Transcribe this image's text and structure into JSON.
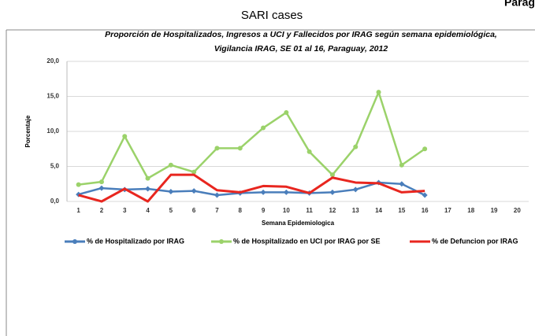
{
  "corner_text": "Parag",
  "chart_data": {
    "type": "line",
    "title": "SARI cases",
    "subtitle": [
      "Proporción de Hospitalizados, Ingresos a UCI y Fallecidos por IRAG según semana epidemiológica,",
      "Vigilancia IRAG, SE 01 al 16, Paraguay, 2012"
    ],
    "x_label": "Semana Epidemiologica",
    "y_label": "Porcentaje",
    "categories": [
      "1",
      "2",
      "3",
      "4",
      "5",
      "6",
      "7",
      "8",
      "9",
      "10",
      "11",
      "12",
      "13",
      "14",
      "15",
      "16",
      "17",
      "18",
      "19",
      "20"
    ],
    "series": [
      {
        "name": "% de Hospitalizado por IRAG",
        "color": "#4a7ebb",
        "marker": "diamond",
        "values": [
          1.0,
          1.9,
          1.7,
          1.8,
          1.4,
          1.5,
          0.9,
          1.2,
          1.3,
          1.3,
          1.2,
          1.3,
          1.7,
          2.7,
          2.5,
          0.9,
          null,
          null,
          null,
          null
        ]
      },
      {
        "name": "% de Hospitalizado en UCI por IRAG por SE",
        "color": "#9bd26a",
        "marker": "circle",
        "values": [
          2.4,
          2.8,
          9.3,
          3.3,
          5.2,
          4.2,
          7.6,
          7.6,
          10.5,
          12.7,
          7.1,
          3.8,
          7.8,
          15.6,
          5.2,
          7.5,
          null,
          null,
          null,
          null
        ]
      },
      {
        "name": "% de Defuncion por IRAG",
        "color": "#e8261f",
        "marker": "none",
        "values": [
          0.9,
          0.0,
          1.8,
          0.0,
          3.8,
          3.8,
          1.6,
          1.3,
          2.2,
          2.1,
          1.2,
          3.4,
          2.7,
          2.6,
          1.3,
          1.5,
          null,
          null,
          null,
          null
        ]
      }
    ],
    "ylim": [
      0,
      20
    ],
    "yticks": [
      {
        "value": 0,
        "label": "0,0"
      },
      {
        "value": 5,
        "label": "5,0"
      },
      {
        "value": 10,
        "label": "10,0"
      },
      {
        "value": 15,
        "label": "15,0"
      },
      {
        "value": 20,
        "label": "20,0"
      }
    ],
    "grid": true,
    "legend": "bottom"
  }
}
